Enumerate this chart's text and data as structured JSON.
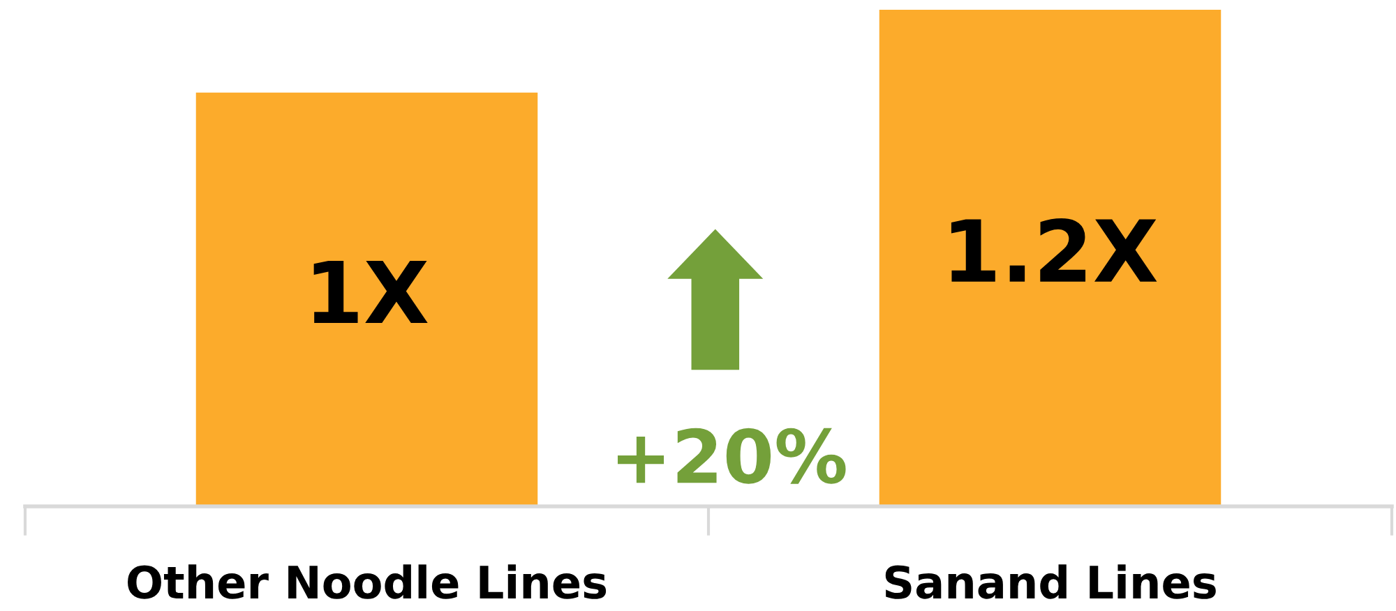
{
  "chart_data": {
    "type": "bar",
    "categories": [
      "Other Noodle Lines",
      "Sanand Lines"
    ],
    "values": [
      1,
      1.2
    ],
    "value_labels": [
      "1X",
      "1.2X"
    ],
    "color": "#fcab2b",
    "annotations": [
      "+20%"
    ],
    "tick_labels": "x",
    "grid": false,
    "legend": false
  }
}
